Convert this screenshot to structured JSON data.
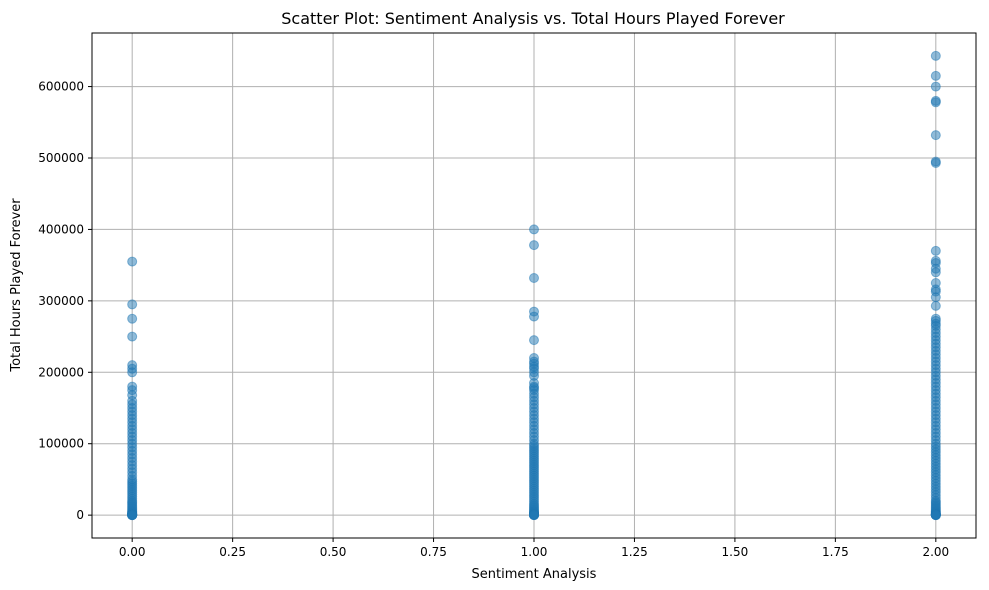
{
  "chart_data": {
    "type": "scatter",
    "title": "Scatter Plot: Sentiment Analysis vs. Total Hours Played Forever",
    "xlabel": "Sentiment Analysis",
    "ylabel": "Total Hours Played Forever",
    "xlim": [
      -0.1,
      2.1
    ],
    "ylim": [
      -32000,
      675000
    ],
    "x_ticks": [
      0.0,
      0.25,
      0.5,
      0.75,
      1.0,
      1.25,
      1.5,
      1.75,
      2.0
    ],
    "x_tick_labels": [
      "0.00",
      "0.25",
      "0.50",
      "0.75",
      "1.00",
      "1.25",
      "1.50",
      "1.75",
      "2.00"
    ],
    "y_ticks": [
      0,
      100000,
      200000,
      300000,
      400000,
      500000,
      600000
    ],
    "y_tick_labels": [
      "0",
      "100000",
      "200000",
      "300000",
      "400000",
      "500000",
      "600000"
    ],
    "grid": true,
    "legend": "none",
    "point_color": "#1f77b4",
    "point_alpha": 0.5,
    "series": [
      {
        "x": [
          0,
          0,
          0,
          0,
          0,
          0,
          0,
          0,
          0,
          0,
          0,
          0,
          0,
          0,
          0,
          0,
          0,
          0,
          0,
          0,
          0,
          0,
          0,
          0,
          0,
          0,
          0,
          0,
          0,
          0,
          0,
          0,
          0,
          0,
          0,
          0,
          0,
          0,
          0,
          0,
          0,
          0,
          0,
          0,
          0,
          0,
          0,
          0,
          0,
          0,
          0,
          0,
          0,
          0,
          0,
          0,
          0,
          0,
          0,
          0,
          0,
          0,
          0,
          0,
          0,
          0,
          0,
          0,
          0
        ],
        "y": [
          355000,
          295000,
          275000,
          250000,
          210000,
          205000,
          200000,
          180000,
          175000,
          168000,
          160000,
          155000,
          150000,
          145000,
          140000,
          135000,
          130000,
          125000,
          120000,
          115000,
          110000,
          105000,
          100000,
          95000,
          90000,
          85000,
          80000,
          75000,
          70000,
          65000,
          60000,
          55000,
          50000,
          47000,
          44000,
          41000,
          38000,
          35000,
          32000,
          29000,
          26000,
          23000,
          20000,
          18000,
          16000,
          14000,
          12000,
          10000,
          8000,
          6000,
          5000,
          4000,
          3000,
          2500,
          2000,
          1500,
          1000,
          800,
          600,
          400,
          300,
          200,
          100,
          50,
          0,
          0,
          0,
          0,
          0
        ]
      },
      {
        "x": [
          1,
          1,
          1,
          1,
          1,
          1,
          1,
          1,
          1,
          1,
          1,
          1,
          1,
          1,
          1,
          1,
          1,
          1,
          1,
          1,
          1,
          1,
          1,
          1,
          1,
          1,
          1,
          1,
          1,
          1,
          1,
          1,
          1,
          1,
          1,
          1,
          1,
          1,
          1,
          1,
          1,
          1,
          1,
          1,
          1,
          1,
          1,
          1,
          1,
          1,
          1,
          1,
          1,
          1,
          1,
          1,
          1,
          1,
          1,
          1,
          1,
          1,
          1,
          1,
          1,
          1,
          1,
          1,
          1,
          1,
          1,
          1,
          1,
          1,
          1,
          1,
          1,
          1,
          1,
          1
        ],
        "y": [
          400000,
          378000,
          332000,
          285000,
          278000,
          245000,
          220000,
          215000,
          212000,
          208000,
          205000,
          200000,
          195000,
          185000,
          180000,
          178000,
          175000,
          170000,
          165000,
          160000,
          155000,
          150000,
          145000,
          140000,
          135000,
          130000,
          125000,
          120000,
          115000,
          110000,
          105000,
          100000,
          97000,
          94000,
          91000,
          88000,
          85000,
          82000,
          79000,
          76000,
          73000,
          70000,
          67000,
          64000,
          61000,
          58000,
          55000,
          52000,
          49000,
          46000,
          43000,
          40000,
          37000,
          34000,
          31000,
          28000,
          25000,
          22000,
          19000,
          16000,
          14000,
          12000,
          10000,
          8000,
          6000,
          5000,
          4000,
          3000,
          2500,
          2000,
          1500,
          1000,
          800,
          600,
          400,
          300,
          200,
          100,
          50,
          0
        ]
      },
      {
        "x": [
          2,
          2,
          2,
          2,
          2,
          2,
          2,
          2,
          2,
          2,
          2,
          2,
          2,
          2,
          2,
          2,
          2,
          2,
          2,
          2,
          2,
          2,
          2,
          2,
          2,
          2,
          2,
          2,
          2,
          2,
          2,
          2,
          2,
          2,
          2,
          2,
          2,
          2,
          2,
          2,
          2,
          2,
          2,
          2,
          2,
          2,
          2,
          2,
          2,
          2,
          2,
          2,
          2,
          2,
          2,
          2,
          2,
          2,
          2,
          2,
          2,
          2,
          2,
          2,
          2,
          2,
          2,
          2,
          2,
          2,
          2,
          2,
          2,
          2,
          2,
          2,
          2,
          2,
          2,
          2,
          2,
          2,
          2,
          2,
          2,
          2,
          2,
          2,
          2,
          2,
          2,
          2,
          2,
          2,
          2,
          2,
          2,
          2
        ],
        "y": [
          643000,
          615000,
          600000,
          580000,
          578000,
          532000,
          495000,
          493000,
          370000,
          356000,
          353000,
          345000,
          340000,
          325000,
          316000,
          313000,
          305000,
          293000,
          275000,
          272000,
          268000,
          265000,
          260000,
          255000,
          250000,
          245000,
          240000,
          235000,
          230000,
          225000,
          220000,
          215000,
          210000,
          205000,
          200000,
          195000,
          190000,
          185000,
          180000,
          175000,
          170000,
          165000,
          160000,
          155000,
          150000,
          145000,
          140000,
          135000,
          130000,
          125000,
          120000,
          115000,
          110000,
          105000,
          100000,
          96000,
          92000,
          88000,
          84000,
          80000,
          76000,
          72000,
          68000,
          64000,
          60000,
          56000,
          52000,
          48000,
          44000,
          40000,
          36000,
          32000,
          28000,
          24000,
          20000,
          18000,
          16000,
          14000,
          12000,
          10000,
          8000,
          6000,
          5000,
          4000,
          3000,
          2500,
          2000,
          1500,
          1000,
          800,
          600,
          400,
          300,
          200,
          100,
          50,
          0,
          0
        ]
      }
    ]
  }
}
